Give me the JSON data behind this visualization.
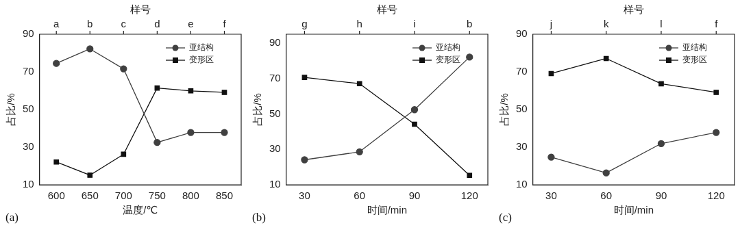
{
  "chart_data": [
    {
      "type": "line",
      "xlabel": "温度/℃",
      "ylabel": "占比/%",
      "x2label": "样号",
      "x": [
        600,
        650,
        700,
        750,
        800,
        850
      ],
      "xlim": [
        575,
        875
      ],
      "xticks": [
        600,
        650,
        700,
        750,
        800,
        850
      ],
      "ylim": [
        10,
        90
      ],
      "yticks": [
        10,
        30,
        50,
        70,
        90
      ],
      "grid": false,
      "legend": "top right",
      "line_style": "solid",
      "annotations": [
        "(a)",
        {
          "text": "a",
          "x": 600
        },
        {
          "text": "b",
          "x": 650
        },
        {
          "text": "c",
          "x": 700
        },
        {
          "text": "d",
          "x": 750
        },
        {
          "text": "e",
          "x": 800
        },
        {
          "text": "f",
          "x": 850
        }
      ],
      "series": [
        {
          "name": "亚结构",
          "color": "#404040",
          "marker": "circle",
          "values": [
            74.5,
            82.2,
            71.6,
            32.5,
            37.8,
            37.8
          ]
        },
        {
          "name": "变形区",
          "color": "#111111",
          "marker": "square",
          "values": [
            22.1,
            15.1,
            26.2,
            61.4,
            59.9,
            59.1
          ]
        }
      ]
    },
    {
      "type": "line",
      "xlabel": "时间/min",
      "ylabel": "占比/%",
      "x2label": "样号",
      "x": [
        30,
        60,
        90,
        120
      ],
      "xlim": [
        20,
        130
      ],
      "xticks": [
        30,
        60,
        90,
        120
      ],
      "ylim": [
        10,
        95
      ],
      "yticks": [
        10,
        30,
        50,
        70,
        90
      ],
      "grid": false,
      "legend": "top right",
      "line_style": "solid",
      "annotations": [
        "(b)",
        {
          "text": "g",
          "x": 30
        },
        {
          "text": "h",
          "x": 60
        },
        {
          "text": "i",
          "x": 90
        },
        {
          "text": "b",
          "x": 120
        }
      ],
      "series": [
        {
          "name": "亚结构",
          "color": "#404040",
          "marker": "circle",
          "values": [
            24.1,
            28.6,
            52.4,
            82.1
          ]
        },
        {
          "name": "变形区",
          "color": "#111111",
          "marker": "square",
          "values": [
            70.6,
            67.1,
            44.2,
            15.3
          ]
        }
      ]
    },
    {
      "type": "line",
      "xlabel": "时间/min",
      "ylabel": "占比/%",
      "x2label": "样号",
      "x": [
        30,
        60,
        90,
        120
      ],
      "xlim": [
        20,
        130
      ],
      "xticks": [
        30,
        60,
        90,
        120
      ],
      "ylim": [
        10,
        90
      ],
      "yticks": [
        10,
        30,
        50,
        70,
        90
      ],
      "grid": false,
      "legend": "top right",
      "line_style": "solid",
      "annotations": [
        "(c)",
        {
          "text": "j",
          "x": 30
        },
        {
          "text": "k",
          "x": 60
        },
        {
          "text": "l",
          "x": 90
        },
        {
          "text": "f",
          "x": 120
        }
      ],
      "series": [
        {
          "name": "亚结构",
          "color": "#404040",
          "marker": "circle",
          "values": [
            24.7,
            16.3,
            31.9,
            37.8
          ]
        },
        {
          "name": "变形区",
          "color": "#111111",
          "marker": "square",
          "values": [
            69.1,
            77.1,
            63.7,
            59.1
          ]
        }
      ]
    }
  ]
}
